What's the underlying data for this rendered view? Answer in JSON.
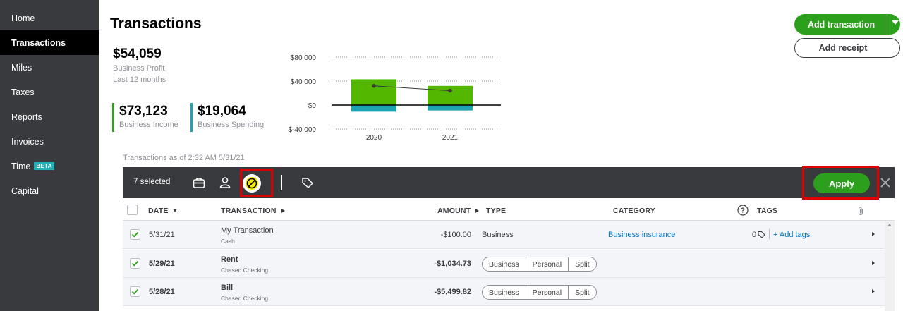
{
  "sidebar": {
    "items": [
      {
        "label": "Home"
      },
      {
        "label": "Transactions"
      },
      {
        "label": "Miles"
      },
      {
        "label": "Taxes"
      },
      {
        "label": "Reports"
      },
      {
        "label": "Invoices"
      },
      {
        "label": "Time",
        "badge": "BETA"
      },
      {
        "label": "Capital"
      }
    ],
    "active": "Transactions"
  },
  "header": {
    "title": "Transactions",
    "add_transaction_label": "Add transaction",
    "add_receipt_label": "Add receipt"
  },
  "summary": {
    "profit_value": "$54,059",
    "profit_label": "Business Profit",
    "profit_period": "Last 12 months",
    "income_value": "$73,123",
    "income_label": "Business Income",
    "spending_value": "$19,064",
    "spending_label": "Business Spending"
  },
  "chart_data": {
    "type": "bar",
    "categories": [
      "2020",
      "2021"
    ],
    "series": [
      {
        "name": "Business Income",
        "values": [
          43000,
          32000
        ],
        "color": "#53b700"
      },
      {
        "name": "Business Spending",
        "values": [
          -11000,
          -9000
        ],
        "color": "#1fa3b3"
      },
      {
        "name": "Business Profit",
        "values": [
          32000,
          24000
        ],
        "color": "#393a3d"
      }
    ],
    "y_ticks": [
      "$80 000",
      "$40 000",
      "$0",
      "$-40 000"
    ],
    "ylim": [
      -40000,
      80000
    ],
    "grid": true
  },
  "as_of": "Transactions as of 2:32 AM 5/31/21",
  "toolbar": {
    "selected_text": "7 selected",
    "apply_label": "Apply",
    "icons": [
      "briefcase-icon",
      "person-icon",
      "exclude-icon",
      "tag-icon",
      "close-icon"
    ]
  },
  "table": {
    "headers": {
      "date": "DATE",
      "transaction": "TRANSACTION",
      "amount": "AMOUNT",
      "type": "TYPE",
      "category": "CATEGORY",
      "tags": "TAGS"
    },
    "rows": [
      {
        "date": "5/31/21",
        "name": "My Transaction",
        "account": "Cash",
        "amount": "-$100.00",
        "type": "Business",
        "category": "Business insurance",
        "tags_count": "0",
        "add_tags": "+ Add tags",
        "checked": true
      },
      {
        "date": "5/29/21",
        "name": "Rent",
        "account": "Chased Checking",
        "amount": "-$1,034.73",
        "type_options": [
          "Business",
          "Personal",
          "Split"
        ],
        "checked": true
      },
      {
        "date": "5/28/21",
        "name": "Bill",
        "account": "Chased Checking",
        "amount": "-$5,499.82",
        "type_options": [
          "Business",
          "Personal",
          "Split"
        ],
        "checked": true
      }
    ]
  },
  "colors": {
    "sidebar_bg": "#393a3d",
    "brand_green": "#2ca01c",
    "income_green": "#53b700",
    "spending_teal": "#1fa3b3",
    "link_blue": "#0077c5",
    "highlight_red": "#e00000"
  }
}
